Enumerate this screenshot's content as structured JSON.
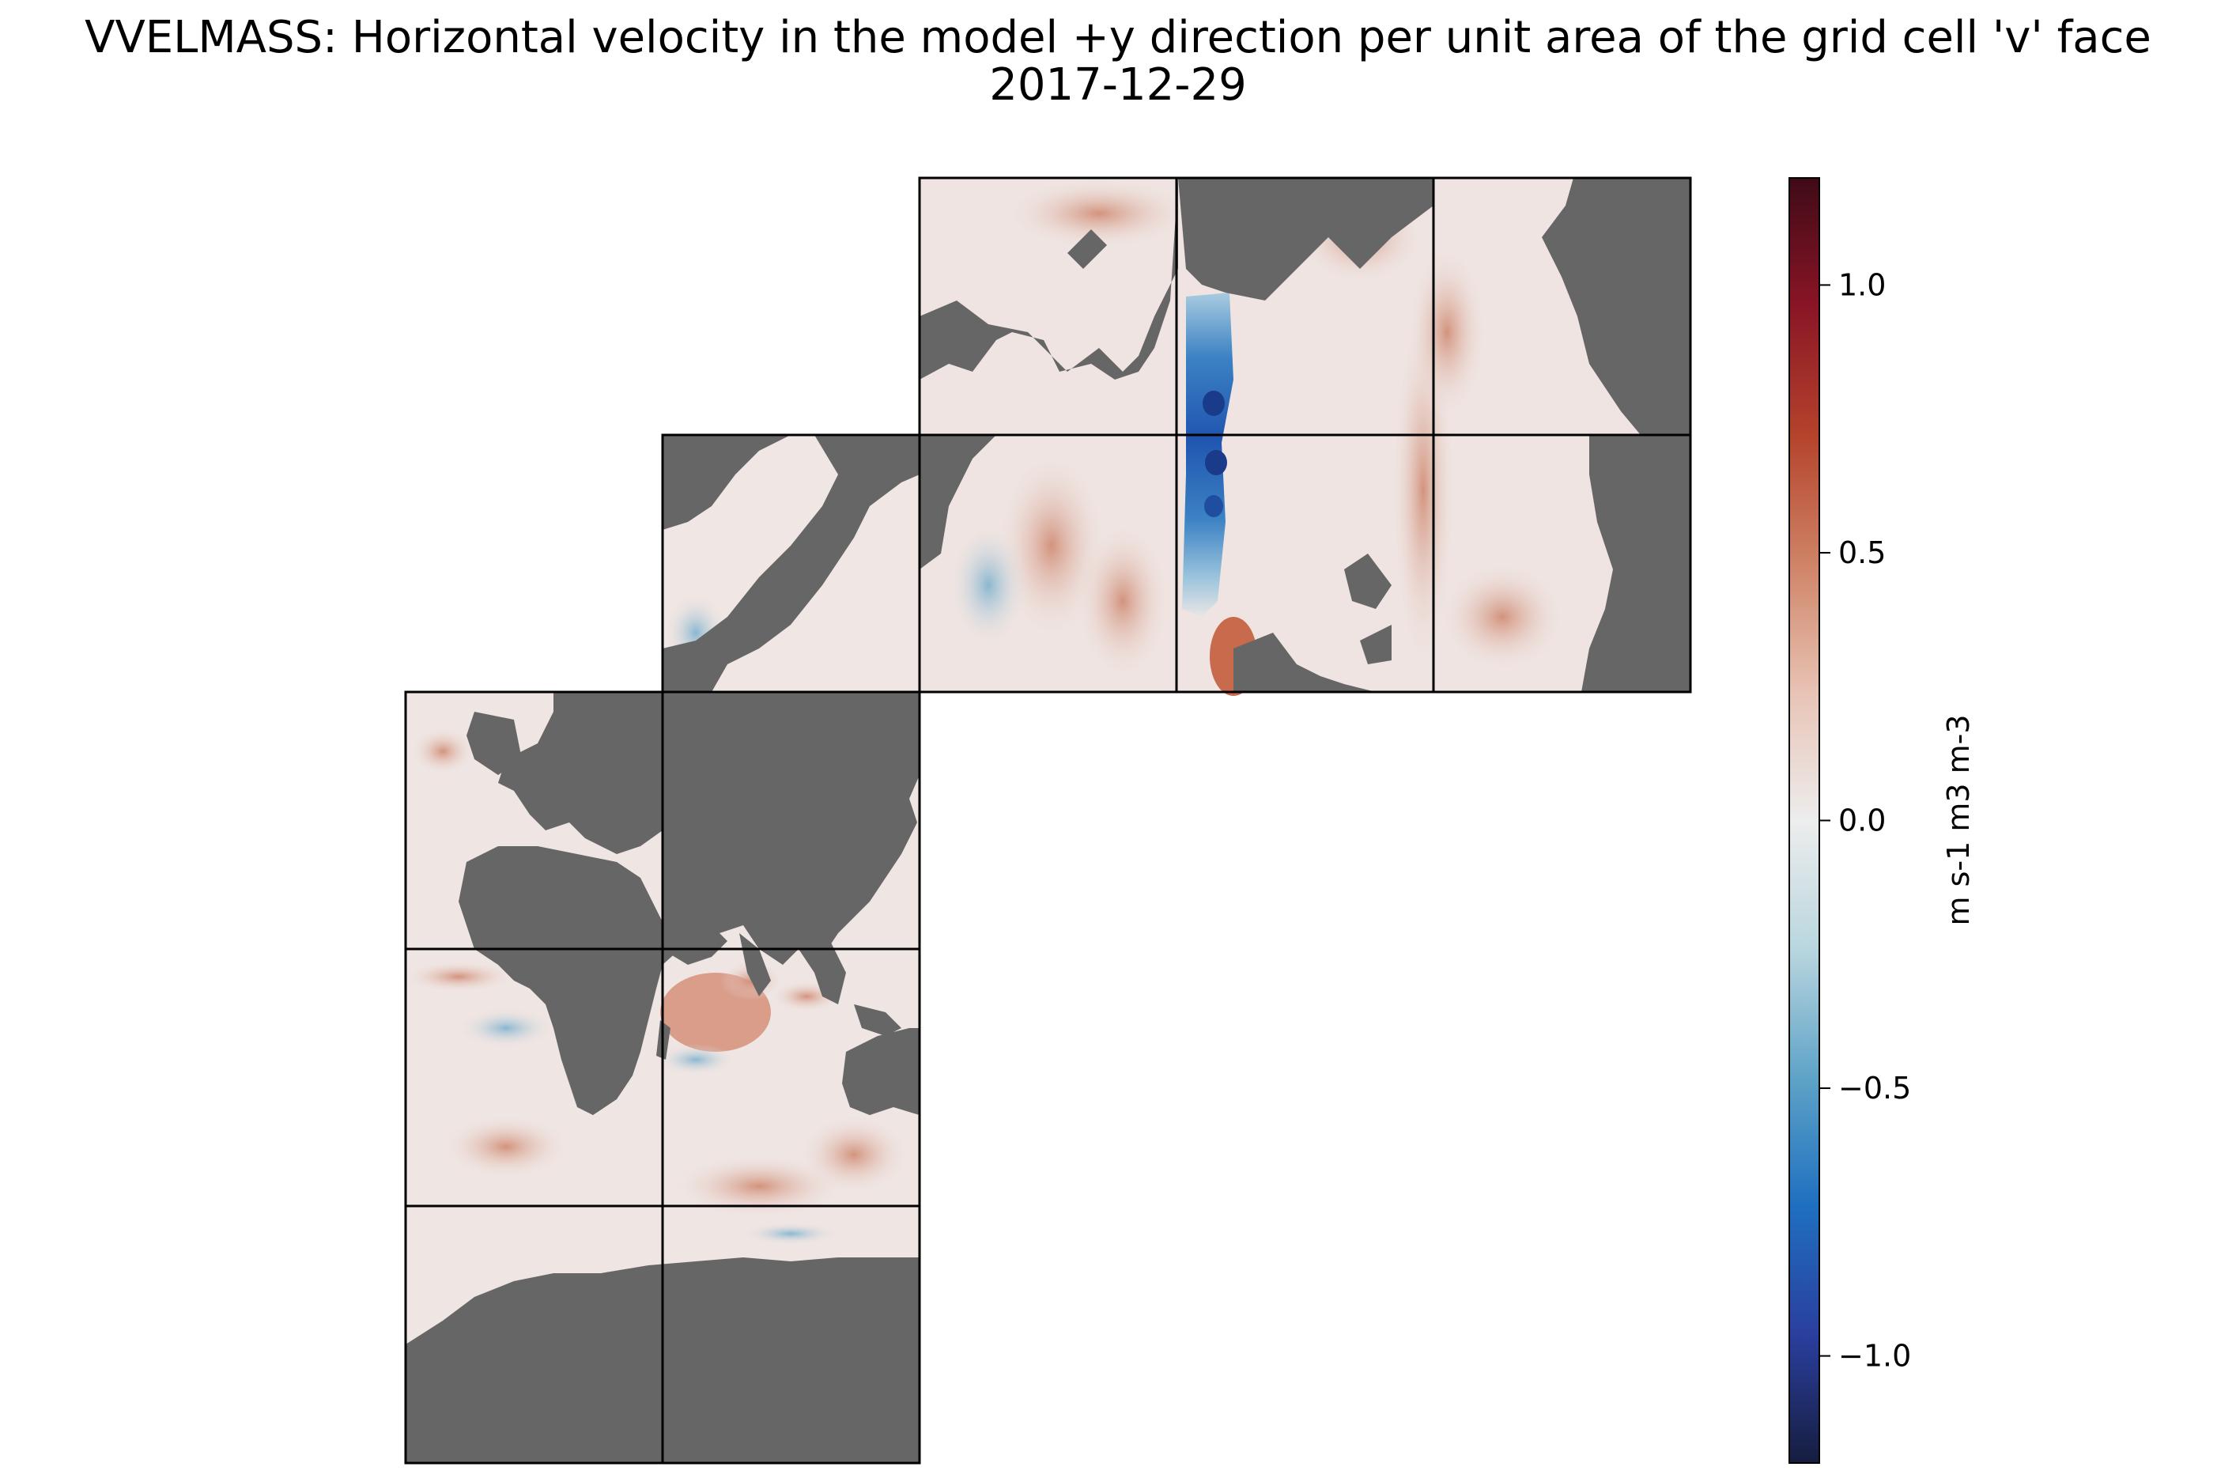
{
  "title": "VVELMASS: Horizontal velocity in the model +y direction per unit area of the grid cell 'v' face",
  "subtitle": "2017-12-29",
  "colorbar": {
    "label": "m s-1 m3 m-3",
    "range": [
      -1.2,
      1.2
    ],
    "ticks": [
      {
        "value": 1.0,
        "label": "1.0"
      },
      {
        "value": 0.5,
        "label": "0.5"
      },
      {
        "value": 0.0,
        "label": "0.0"
      },
      {
        "value": -0.5,
        "label": "−0.5"
      },
      {
        "value": -1.0,
        "label": "−1.0"
      }
    ],
    "colormap": "balance",
    "stops": [
      "#161d3f",
      "#2a3f9e",
      "#1f6fc0",
      "#5ea3c7",
      "#b9d6df",
      "#ededed",
      "#e8c3b5",
      "#cf8366",
      "#b4432b",
      "#8a1526",
      "#3f0a17"
    ]
  },
  "colors": {
    "land": "#666666",
    "grid_lines": "#000000",
    "ocean_neutral": "#efe6e3"
  }
}
